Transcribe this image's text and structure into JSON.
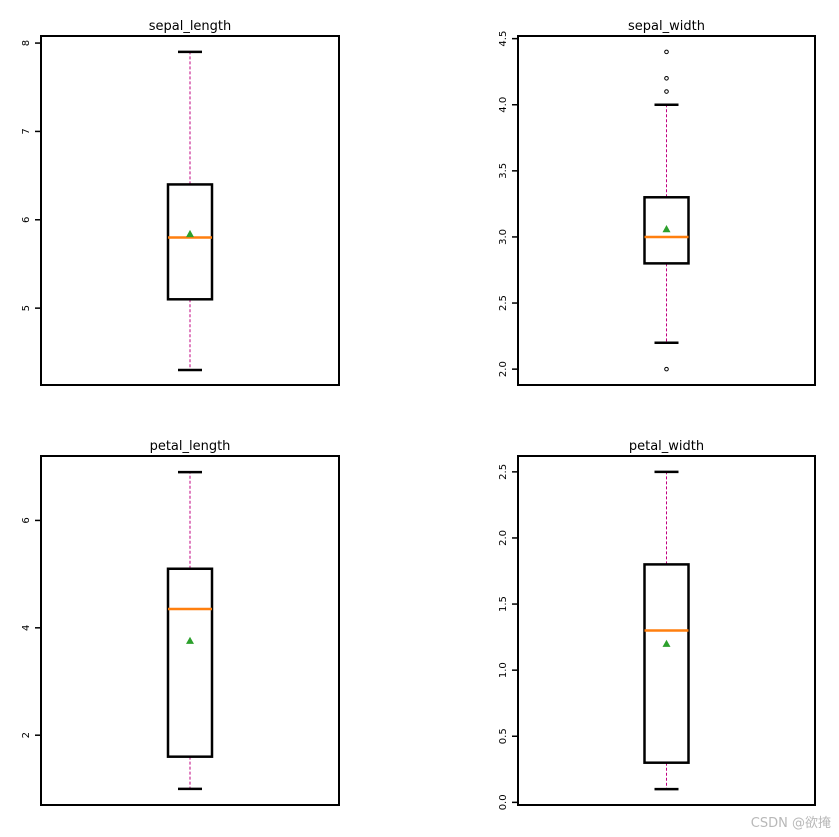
{
  "chart_data": [
    {
      "type": "box",
      "title": "sepal_length",
      "ylim": [
        4.13,
        8.08
      ],
      "yticks": [
        5,
        6,
        7,
        8
      ],
      "whisker_low": 4.3,
      "q1": 5.1,
      "median": 5.8,
      "q3": 6.4,
      "whisker_high": 7.9,
      "mean": 5.84,
      "outliers": []
    },
    {
      "type": "box",
      "title": "sepal_width",
      "ylim": [
        1.88,
        4.52
      ],
      "yticks": [
        2.0,
        2.5,
        3.0,
        3.5,
        4.0,
        4.5
      ],
      "whisker_low": 2.2,
      "q1": 2.8,
      "median": 3.0,
      "q3": 3.3,
      "whisker_high": 4.0,
      "mean": 3.06,
      "outliers": [
        2.0,
        4.1,
        4.2,
        4.4
      ]
    },
    {
      "type": "box",
      "title": "petal_length",
      "ylim": [
        0.7,
        7.2
      ],
      "yticks": [
        2,
        4,
        6
      ],
      "whisker_low": 1.0,
      "q1": 1.6,
      "median": 4.35,
      "q3": 5.1,
      "whisker_high": 6.9,
      "mean": 3.76,
      "outliers": []
    },
    {
      "type": "box",
      "title": "petal_width",
      "ylim": [
        -0.02,
        2.62
      ],
      "yticks": [
        0.0,
        0.5,
        1.0,
        1.5,
        2.0,
        2.5
      ],
      "whisker_low": 0.1,
      "q1": 0.3,
      "median": 1.3,
      "q3": 1.8,
      "whisker_high": 2.5,
      "mean": 1.2,
      "outliers": []
    }
  ],
  "colors": {
    "box": "#000000",
    "median": "#ff7f0e",
    "mean": "#2ca02c",
    "whisker": "#c00080"
  },
  "watermark": "CSDN @欲掩"
}
